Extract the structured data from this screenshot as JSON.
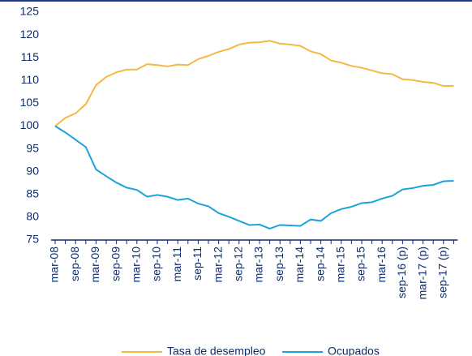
{
  "chart_data": {
    "type": "line",
    "categories": [
      "mar-08",
      null,
      "sep-08",
      null,
      "mar-09",
      null,
      "sep-09",
      null,
      "mar-10",
      null,
      "sep-10",
      null,
      "mar-11",
      null,
      "sep-11",
      null,
      "mar-12",
      null,
      "sep-12",
      null,
      "mar-13",
      null,
      "sep-13",
      null,
      "mar-14",
      null,
      "sep-14",
      null,
      "mar-15",
      null,
      "sep-15",
      null,
      "mar-16",
      null,
      "sep-16 (p)",
      null,
      "mar-17 (p)",
      null,
      "sep-17 (p)",
      null
    ],
    "series": [
      {
        "name": "Tasa de desempleo",
        "color": "#f5b942",
        "values": [
          100,
          101.8,
          102.8,
          104.8,
          109,
          110.8,
          111.8,
          112.4,
          112.4,
          113.6,
          113.4,
          113.1,
          113.5,
          113.4,
          114.7,
          115.4,
          116.3,
          116.9,
          117.9,
          118.3,
          118.4,
          118.7,
          118.1,
          117.9,
          117.6,
          116.4,
          115.8,
          114.4,
          113.9,
          113.2,
          112.8,
          112.2,
          111.6,
          111.4,
          110.3,
          110.1,
          109.7,
          109.5,
          108.8,
          108.8
        ]
      },
      {
        "name": "Ocupados",
        "color": "#1ca3dc",
        "values": [
          100,
          98.6,
          97,
          95.4,
          90.5,
          89,
          87.6,
          86.5,
          86,
          84.5,
          84.9,
          84.5,
          83.8,
          84.1,
          83,
          82.4,
          80.9,
          80.1,
          79.2,
          78.3,
          78.4,
          77.5,
          78.3,
          78.2,
          78.1,
          79.5,
          79.2,
          80.9,
          81.8,
          82.3,
          83.1,
          83.3,
          84.1,
          84.7,
          86.1,
          86.4,
          86.9,
          87.1,
          87.9,
          88
        ]
      }
    ],
    "ylim": [
      75,
      125
    ],
    "yticks": [
      75,
      80,
      85,
      90,
      95,
      100,
      105,
      110,
      115,
      120,
      125
    ],
    "grid": false
  }
}
